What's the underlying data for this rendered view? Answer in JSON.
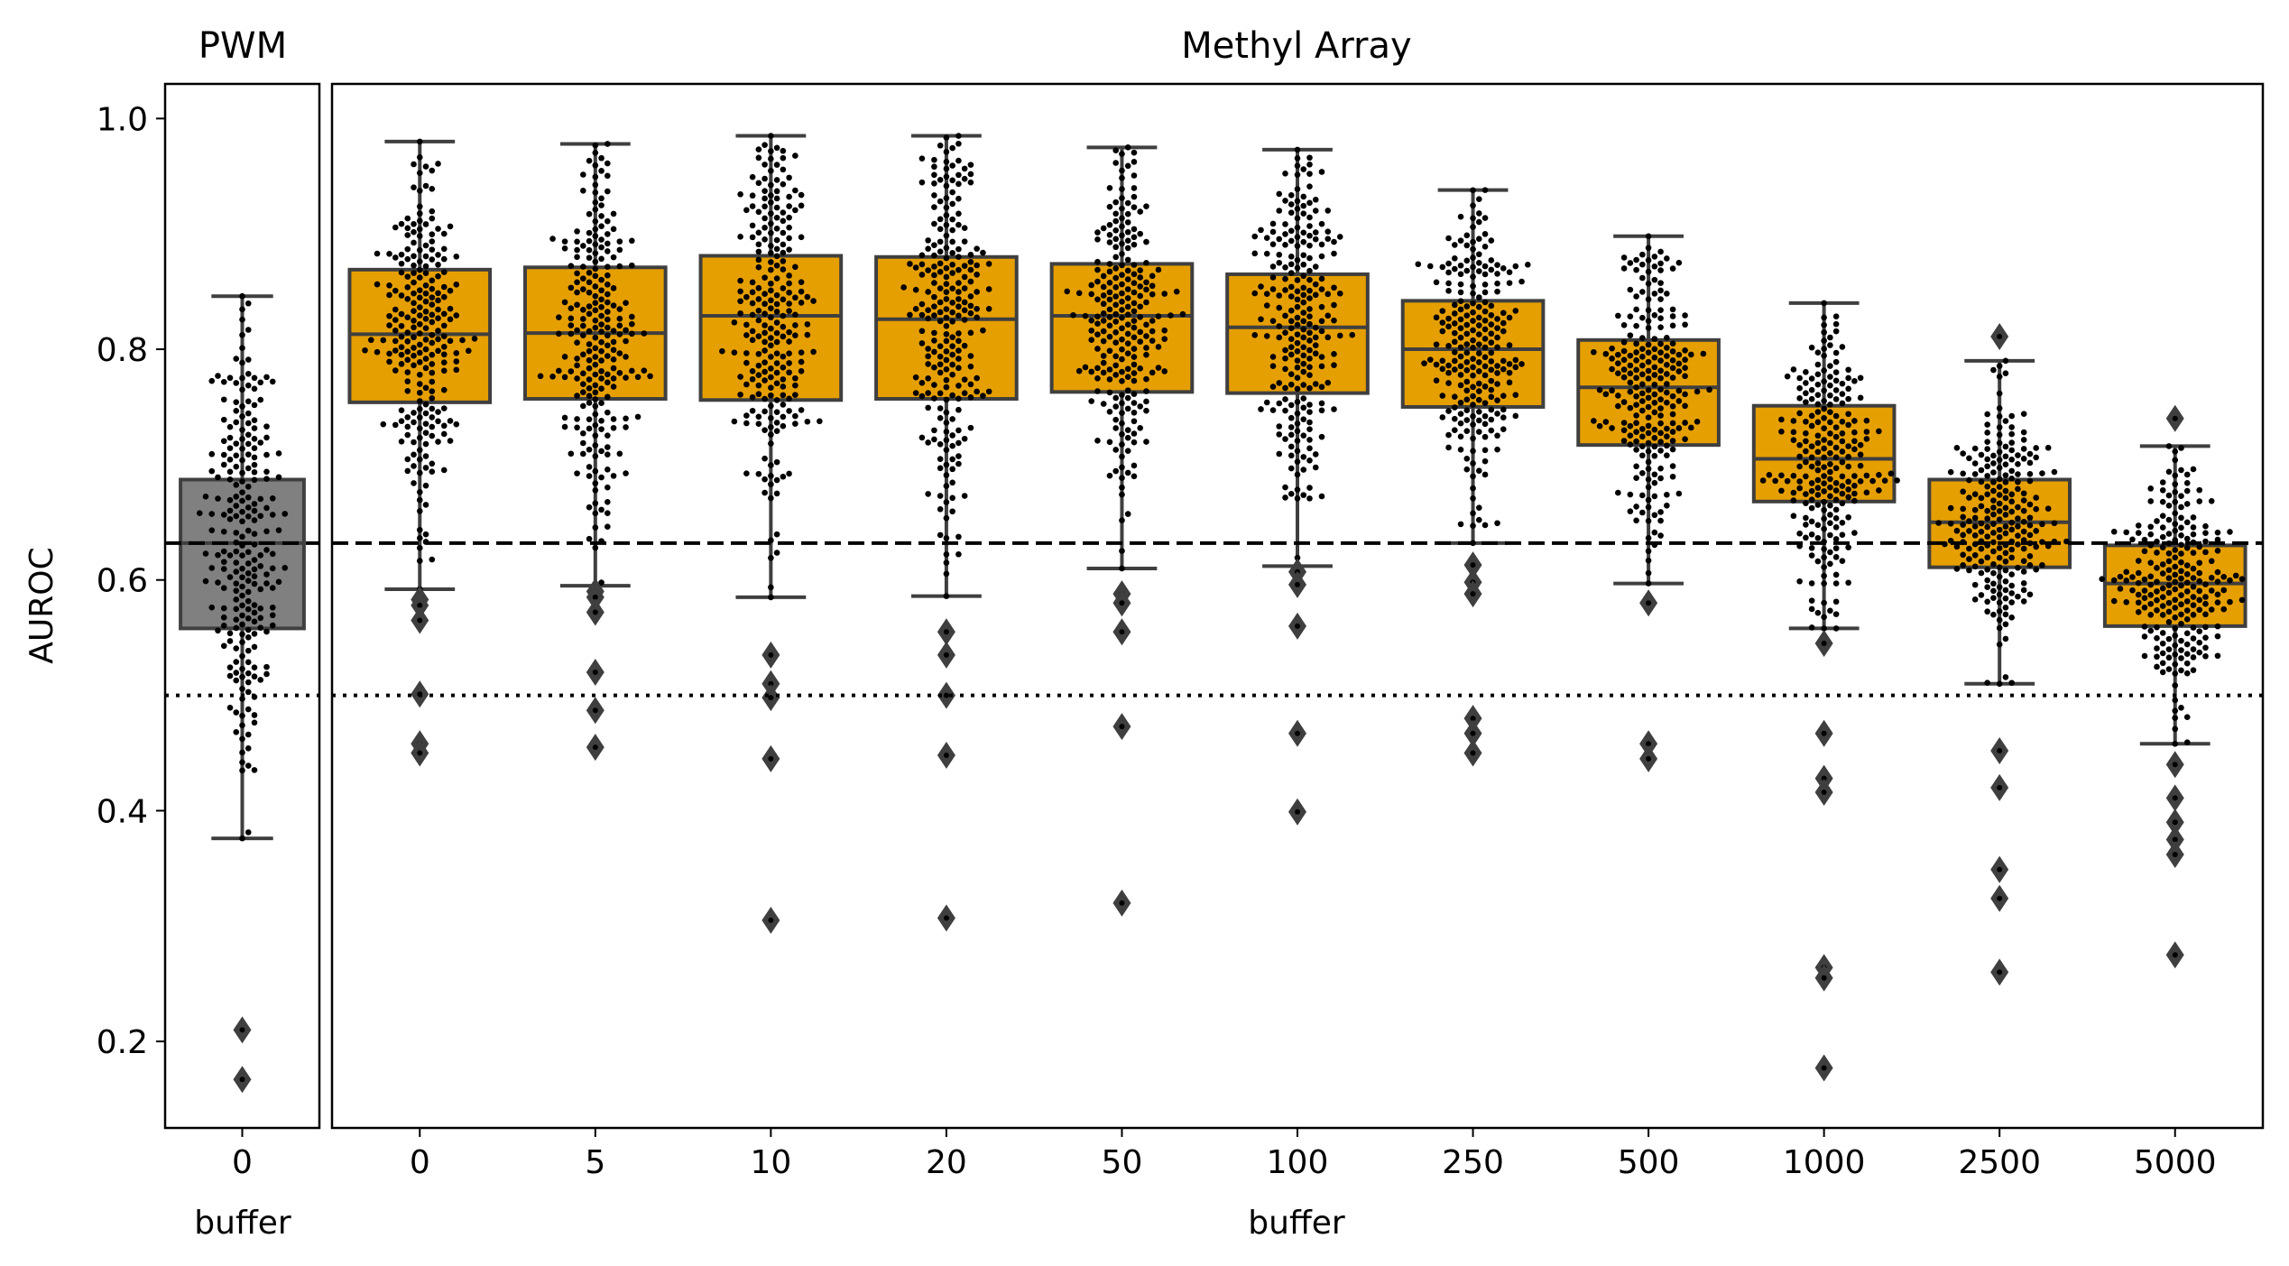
{
  "chart_data": [
    {
      "type": "box",
      "title": "PWM",
      "xlabel": "buffer",
      "ylabel": "AUROC",
      "ylim": [
        0.125,
        1.03
      ],
      "yticks": [
        "0.2",
        "0.4",
        "0.6",
        "0.8",
        "1.0"
      ],
      "categories": [
        "0"
      ],
      "color": "#808080",
      "boxes": [
        {
          "category": "0",
          "q1": 0.558,
          "median": 0.632,
          "q3": 0.687,
          "whisker_low": 0.376,
          "whisker_high": 0.846,
          "outliers": [
            0.21,
            0.167
          ]
        }
      ],
      "reference_lines": [
        {
          "style": "dashed",
          "y": 0.632
        },
        {
          "style": "dotted",
          "y": 0.5
        }
      ]
    },
    {
      "type": "box",
      "title": "Methyl Array",
      "xlabel": "buffer",
      "ylabel": "",
      "ylim": [
        0.125,
        1.03
      ],
      "categories": [
        "0",
        "5",
        "10",
        "20",
        "50",
        "100",
        "250",
        "500",
        "1000",
        "2500",
        "5000"
      ],
      "color": "#e69f00",
      "boxes": [
        {
          "category": "0",
          "q1": 0.754,
          "median": 0.813,
          "q3": 0.869,
          "whisker_low": 0.592,
          "whisker_high": 0.98,
          "outliers": [
            0.583,
            0.578,
            0.565,
            0.501,
            0.458,
            0.45
          ]
        },
        {
          "category": "5",
          "q1": 0.757,
          "median": 0.814,
          "q3": 0.871,
          "whisker_low": 0.595,
          "whisker_high": 0.978,
          "outliers": [
            0.59,
            0.585,
            0.572,
            0.52,
            0.487,
            0.455
          ]
        },
        {
          "category": "10",
          "q1": 0.756,
          "median": 0.829,
          "q3": 0.881,
          "whisker_low": 0.585,
          "whisker_high": 0.985,
          "outliers": [
            0.535,
            0.51,
            0.498,
            0.445,
            0.305
          ]
        },
        {
          "category": "20",
          "q1": 0.757,
          "median": 0.826,
          "q3": 0.88,
          "whisker_low": 0.586,
          "whisker_high": 0.985,
          "outliers": [
            0.555,
            0.535,
            0.5,
            0.448,
            0.307
          ]
        },
        {
          "category": "50",
          "q1": 0.763,
          "median": 0.829,
          "q3": 0.874,
          "whisker_low": 0.61,
          "whisker_high": 0.975,
          "outliers": [
            0.588,
            0.58,
            0.555,
            0.473,
            0.32
          ]
        },
        {
          "category": "100",
          "q1": 0.762,
          "median": 0.819,
          "q3": 0.865,
          "whisker_low": 0.612,
          "whisker_high": 0.973,
          "outliers": [
            0.607,
            0.596,
            0.56,
            0.467,
            0.399
          ]
        },
        {
          "category": "250",
          "q1": 0.75,
          "median": 0.8,
          "q3": 0.842,
          "whisker_low": 0.632,
          "whisker_high": 0.938,
          "outliers": [
            0.613,
            0.598,
            0.588,
            0.48,
            0.467,
            0.45
          ]
        },
        {
          "category": "500",
          "q1": 0.717,
          "median": 0.767,
          "q3": 0.808,
          "whisker_low": 0.597,
          "whisker_high": 0.898,
          "outliers": [
            0.58,
            0.458,
            0.445
          ]
        },
        {
          "category": "1000",
          "q1": 0.668,
          "median": 0.705,
          "q3": 0.751,
          "whisker_low": 0.558,
          "whisker_high": 0.84,
          "outliers": [
            0.545,
            0.467,
            0.428,
            0.416,
            0.264,
            0.255,
            0.177
          ]
        },
        {
          "category": "2500",
          "q1": 0.611,
          "median": 0.65,
          "q3": 0.687,
          "whisker_low": 0.51,
          "whisker_high": 0.79,
          "outliers": [
            0.811,
            0.452,
            0.42,
            0.349,
            0.324,
            0.26
          ]
        },
        {
          "category": "5000",
          "q1": 0.56,
          "median": 0.597,
          "q3": 0.63,
          "whisker_low": 0.458,
          "whisker_high": 0.716,
          "outliers": [
            0.74,
            0.44,
            0.411,
            0.39,
            0.375,
            0.362,
            0.275
          ]
        }
      ],
      "reference_lines": [
        {
          "style": "dashed",
          "y": 0.632
        },
        {
          "style": "dotted",
          "y": 0.5
        }
      ]
    }
  ]
}
